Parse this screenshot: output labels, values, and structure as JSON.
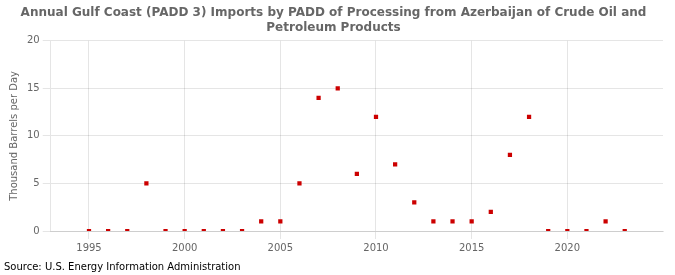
{
  "chart_data": {
    "type": "scatter",
    "title": "Annual Gulf Coast (PADD 3) Imports by PADD of Processing from Azerbaijan of Crude Oil and\nPetroleum Products",
    "ylabel": "Thousand Barrels per Day",
    "source": "Source: U.S. Energy Information Administration",
    "x": [
      1995,
      1996,
      1997,
      1998,
      1999,
      2000,
      2001,
      2002,
      2003,
      2004,
      2005,
      2006,
      2007,
      2008,
      2009,
      2010,
      2011,
      2012,
      2013,
      2014,
      2015,
      2016,
      2017,
      2018,
      2019,
      2020,
      2021,
      2022,
      2023
    ],
    "values": [
      0,
      0,
      0,
      5,
      0,
      0,
      0,
      0,
      0,
      1,
      1,
      5,
      14,
      15,
      6,
      12,
      7,
      3,
      1,
      1,
      1,
      2,
      8,
      12,
      0,
      0,
      0,
      1,
      0
    ],
    "color": "#cc0000",
    "marker": "square",
    "xlim": [
      1993,
      2025
    ],
    "ylim": [
      0,
      20
    ],
    "xticks": [
      1995,
      2000,
      2005,
      2010,
      2015,
      2020
    ],
    "yticks": [
      0,
      5,
      10,
      15,
      20
    ],
    "grid": true
  }
}
